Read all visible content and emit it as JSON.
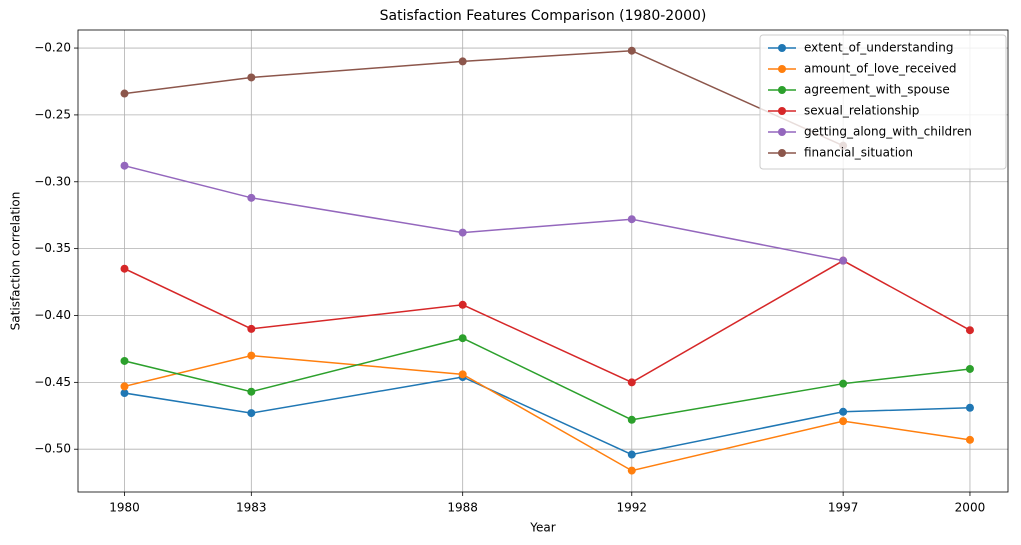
{
  "chart_data": {
    "type": "line",
    "title": "Satisfaction Features Comparison (1980-2000)",
    "xlabel": "Year",
    "ylabel": "Satisfaction correlation",
    "x": [
      1980,
      1983,
      1988,
      1992,
      1997,
      2000
    ],
    "series": [
      {
        "name": "extent_of_understanding",
        "color": "#1f77b4",
        "values": [
          -0.458,
          -0.473,
          -0.446,
          -0.504,
          -0.472,
          -0.469
        ]
      },
      {
        "name": "amount_of_love_received",
        "color": "#ff7f0e",
        "values": [
          -0.453,
          -0.43,
          -0.444,
          -0.516,
          -0.479,
          -0.493
        ]
      },
      {
        "name": "agreement_with_spouse",
        "color": "#2ca02c",
        "values": [
          -0.434,
          -0.457,
          -0.417,
          -0.478,
          -0.451,
          -0.44
        ]
      },
      {
        "name": "sexual_relationship",
        "color": "#d62728",
        "values": [
          -0.365,
          -0.41,
          -0.392,
          -0.45,
          -0.359,
          -0.411
        ]
      },
      {
        "name": "getting_along_with_children",
        "color": "#9467bd",
        "values": [
          -0.288,
          -0.312,
          -0.338,
          -0.328,
          -0.359,
          null
        ]
      },
      {
        "name": "financial_situation",
        "color": "#8c564b",
        "values": [
          -0.234,
          -0.222,
          -0.21,
          -0.202,
          -0.273,
          null
        ]
      }
    ],
    "xlim": [
      1978.9,
      2000.9
    ],
    "ylim": [
      -0.532,
      -0.1865
    ],
    "xticks": [
      1980,
      1983,
      1988,
      1992,
      1997,
      2000
    ],
    "yticks": [
      {
        "value": -0.5,
        "label": "−0.50"
      },
      {
        "value": -0.45,
        "label": "−0.45"
      },
      {
        "value": -0.4,
        "label": "−0.40"
      },
      {
        "value": -0.35,
        "label": "−0.35"
      },
      {
        "value": -0.3,
        "label": "−0.30"
      },
      {
        "value": -0.25,
        "label": "−0.25"
      },
      {
        "value": -0.2,
        "label": "−0.20"
      }
    ],
    "grid": true,
    "legend": "upper right"
  }
}
